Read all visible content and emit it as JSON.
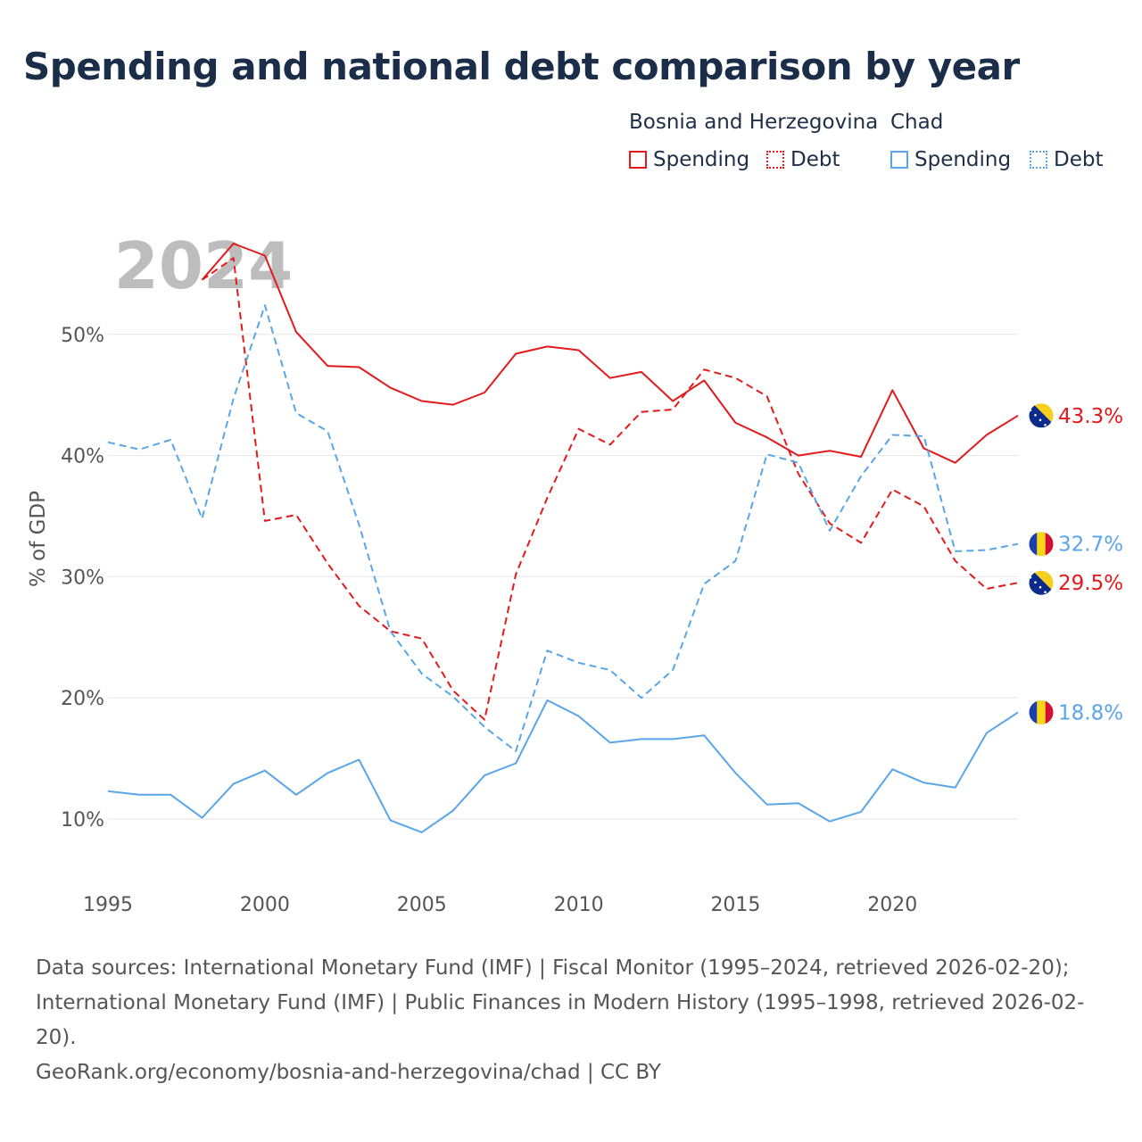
{
  "title": "Spending and national debt comparison by year",
  "legend": {
    "groups": [
      {
        "country": "Bosnia and Herzegovina",
        "items": [
          {
            "label": "Spending",
            "style": "solid"
          },
          {
            "label": "Debt",
            "style": "dotted"
          }
        ],
        "color": "#e31a1c"
      },
      {
        "country": "Chad",
        "items": [
          {
            "label": "Spending",
            "style": "solid"
          },
          {
            "label": "Debt",
            "style": "dotted"
          }
        ],
        "color": "#5aa5e8"
      }
    ]
  },
  "chart_data": {
    "type": "line",
    "ylabel": "% of GDP",
    "year_label": "2024",
    "xlim": [
      1995,
      2024
    ],
    "ylim": [
      5,
      58
    ],
    "x_ticks": [
      "1995",
      "2000",
      "2005",
      "2010",
      "2015",
      "2020"
    ],
    "y_ticks": [
      {
        "value": 10,
        "label": "10%"
      },
      {
        "value": 20,
        "label": "20%"
      },
      {
        "value": 30,
        "label": "30%"
      },
      {
        "value": 40,
        "label": "40%"
      },
      {
        "value": 50,
        "label": "50%"
      }
    ],
    "series": [
      {
        "name": "Bosnia and Herzegovina Spending",
        "country": "Bosnia and Herzegovina",
        "metric": "Spending",
        "color": "#e31a1c",
        "dash": "solid",
        "end_label": "43.3%",
        "flag": "bosnia",
        "x": [
          1998,
          1999,
          2000,
          2001,
          2002,
          2003,
          2004,
          2005,
          2006,
          2007,
          2008,
          2009,
          2010,
          2011,
          2012,
          2013,
          2014,
          2015,
          2016,
          2017,
          2018,
          2019,
          2020,
          2021,
          2022,
          2023,
          2024
        ],
        "values": [
          54.5,
          57.5,
          56.5,
          50.2,
          47.4,
          47.3,
          45.6,
          44.5,
          44.2,
          45.2,
          48.4,
          49.0,
          48.7,
          46.4,
          46.9,
          44.5,
          46.2,
          42.7,
          41.5,
          40.0,
          40.4,
          39.9,
          45.4,
          40.6,
          39.4,
          41.7,
          43.3
        ]
      },
      {
        "name": "Bosnia and Herzegovina Debt",
        "country": "Bosnia and Herzegovina",
        "metric": "Debt",
        "color": "#e31a1c",
        "dash": "dashed",
        "end_label": "29.5%",
        "flag": "bosnia",
        "x": [
          1998,
          1999,
          2000,
          2001,
          2002,
          2003,
          2004,
          2005,
          2006,
          2007,
          2008,
          2009,
          2010,
          2011,
          2012,
          2013,
          2014,
          2015,
          2016,
          2017,
          2018,
          2019,
          2020,
          2021,
          2022,
          2023,
          2024
        ],
        "values": [
          54.5,
          56.3,
          34.6,
          35.1,
          31.1,
          27.6,
          25.5,
          24.9,
          20.6,
          18.2,
          30.2,
          36.5,
          42.2,
          40.9,
          43.6,
          43.8,
          47.1,
          46.4,
          44.9,
          38.5,
          34.4,
          32.8,
          37.2,
          35.8,
          31.3,
          29.0,
          29.5
        ]
      },
      {
        "name": "Chad Spending",
        "country": "Chad",
        "metric": "Spending",
        "color": "#5aa5e8",
        "dash": "solid",
        "end_label": "18.8%",
        "flag": "chad",
        "x": [
          1995,
          1996,
          1997,
          1998,
          1999,
          2000,
          2001,
          2002,
          2003,
          2004,
          2005,
          2006,
          2007,
          2008,
          2009,
          2010,
          2011,
          2012,
          2013,
          2014,
          2015,
          2016,
          2017,
          2018,
          2019,
          2020,
          2021,
          2022,
          2023,
          2024
        ],
        "values": [
          12.3,
          12.0,
          12.0,
          10.1,
          12.9,
          14.0,
          12.0,
          13.8,
          14.9,
          9.9,
          8.9,
          10.7,
          13.6,
          14.6,
          19.8,
          18.5,
          16.3,
          16.6,
          16.6,
          16.9,
          13.8,
          11.2,
          11.3,
          9.8,
          10.6,
          14.1,
          13.0,
          12.6,
          17.1,
          18.8
        ]
      },
      {
        "name": "Chad Debt",
        "country": "Chad",
        "metric": "Debt",
        "color": "#5aa5e8",
        "dash": "dashed",
        "end_label": "32.7%",
        "flag": "chad",
        "x": [
          1995,
          1996,
          1997,
          1998,
          1999,
          2000,
          2001,
          2002,
          2003,
          2004,
          2005,
          2006,
          2007,
          2008,
          2009,
          2010,
          2011,
          2012,
          2013,
          2014,
          2015,
          2016,
          2017,
          2018,
          2019,
          2020,
          2021,
          2022,
          2023,
          2024
        ],
        "values": [
          41.1,
          40.5,
          41.3,
          34.8,
          44.7,
          52.4,
          43.5,
          42.0,
          34.3,
          25.5,
          22.0,
          20.1,
          17.6,
          15.6,
          23.9,
          22.9,
          22.3,
          20.0,
          22.3,
          29.4,
          31.3,
          40.1,
          39.4,
          33.8,
          38.3,
          41.7,
          41.6,
          32.1,
          32.2,
          32.7
        ]
      }
    ]
  },
  "footer": {
    "sources": "Data sources: International Monetary Fund (IMF) | Fiscal Monitor (1995–2024, retrieved 2026-02-20); International Monetary Fund (IMF) | Public Finances in Modern History (1995–1998, retrieved 2026-02-20).",
    "attribution": "GeoRank.org/economy/bosnia-and-herzegovina/chad | CC BY"
  }
}
